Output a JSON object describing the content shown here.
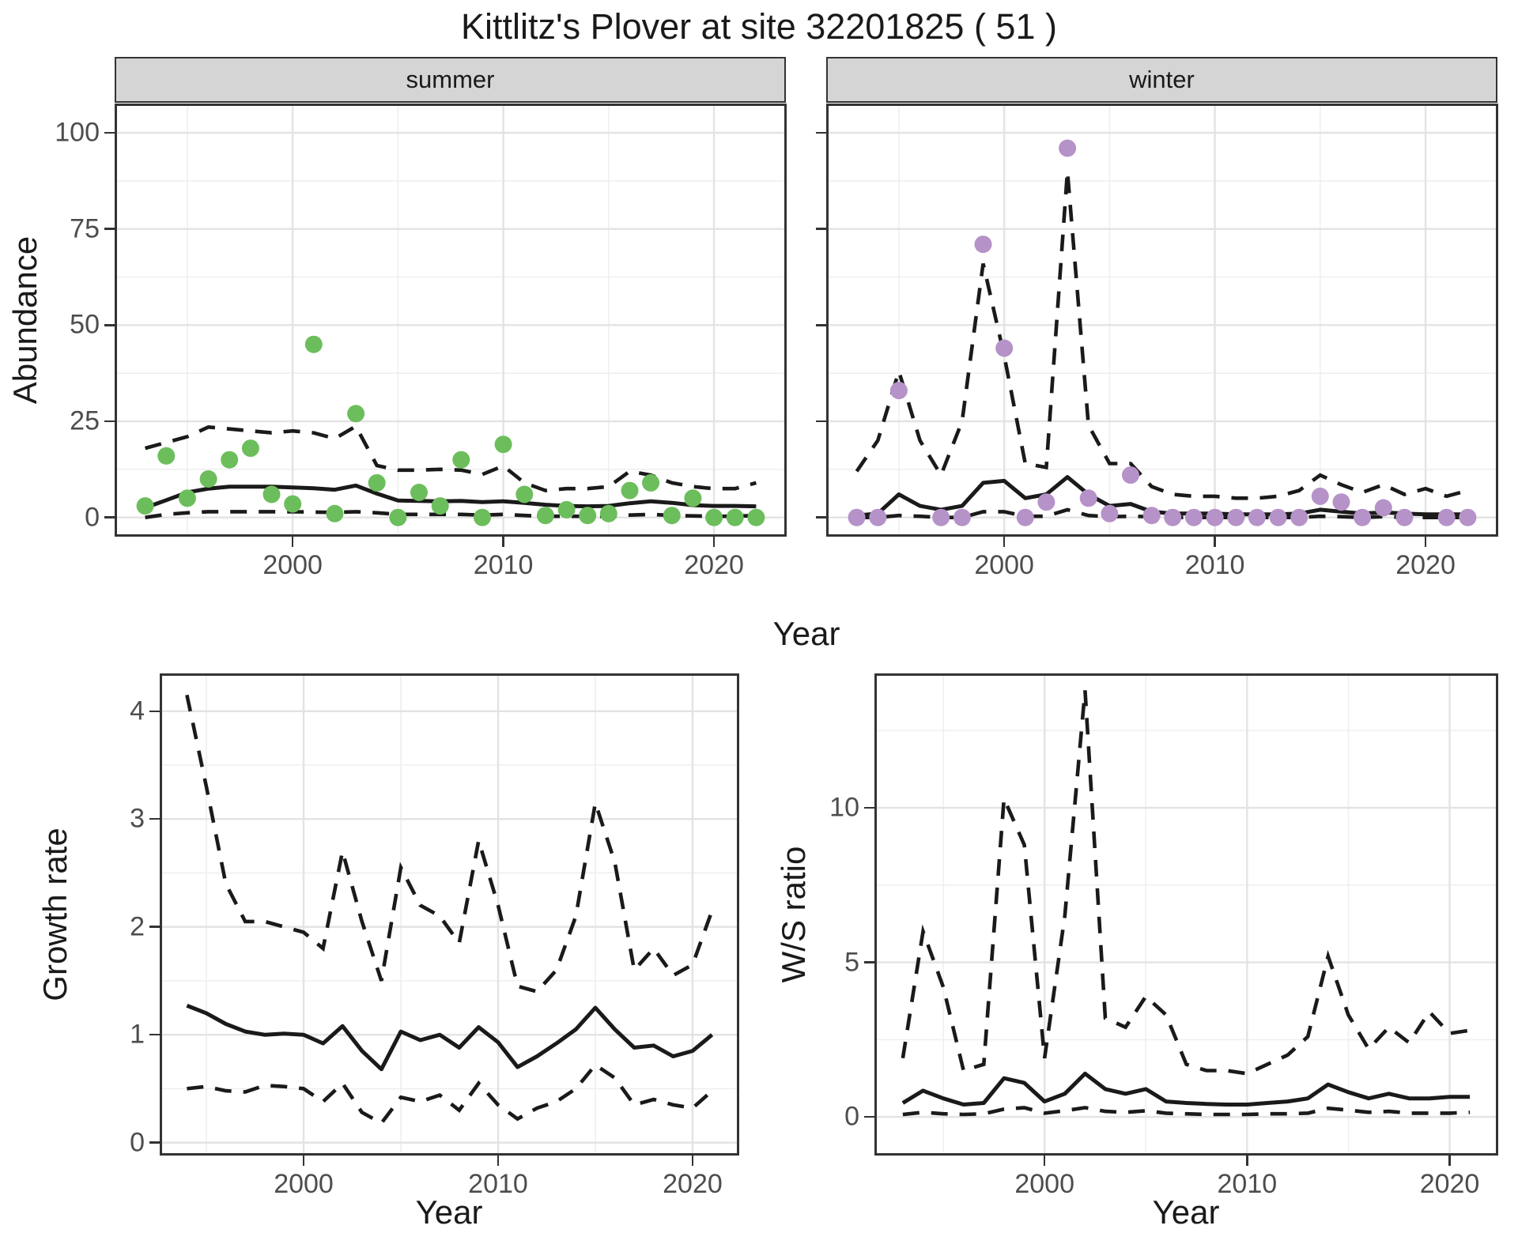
{
  "title": "Kittlitz's Plover at site 32201825 ( 51 )",
  "axis": {
    "abundance_y_title": "Abundance",
    "top_x_title": "Year",
    "growth_y_title": "Growth rate",
    "growth_x_title": "Year",
    "ws_y_title": "W/S ratio",
    "ws_x_title": "Year"
  },
  "facets": {
    "summer": "summer",
    "winter": "winter"
  },
  "colors": {
    "summer_point": "#6CBE5C",
    "winter_point": "#B592C8",
    "line": "#1a1a1a",
    "grid_major": "#e3e3e3",
    "grid_minor": "#efefef",
    "panel_border": "#333333",
    "strip_bg": "#d5d5d5",
    "tick_label": "#4d4d4d"
  },
  "chart_data": [
    {
      "id": "abundance_summer",
      "type": "scatter",
      "facet_label": "summer",
      "ylabel": "Abundance",
      "xlabel": "Year",
      "years": [
        1993,
        1994,
        1995,
        1996,
        1997,
        1998,
        1999,
        2000,
        2001,
        2002,
        2003,
        2004,
        2005,
        2006,
        2007,
        2008,
        2009,
        2010,
        2011,
        2012,
        2013,
        2014,
        2015,
        2016,
        2017,
        2018,
        2019,
        2020,
        2021,
        2022
      ],
      "observed_points": [
        3,
        16,
        5,
        10,
        15,
        18,
        6,
        3.5,
        45,
        1,
        27,
        9,
        0,
        6.5,
        3,
        15,
        0,
        19,
        6,
        0.5,
        2,
        0.5,
        1,
        7,
        9,
        0.5,
        5,
        0,
        0,
        0
      ],
      "median_line": [
        2.5,
        4.5,
        6.5,
        7.5,
        8,
        8,
        8,
        7.8,
        7.6,
        7.2,
        8.3,
        6.2,
        4.4,
        4.3,
        4.2,
        4.3,
        4.0,
        4.2,
        3.8,
        3.3,
        3.0,
        2.9,
        3.0,
        3.7,
        4.2,
        3.8,
        3.2,
        3.0,
        3.0,
        2.9
      ],
      "ci_upper": [
        18,
        19.5,
        21,
        23.5,
        23,
        22.5,
        22,
        22.5,
        22,
        20.5,
        23.7,
        13.5,
        12.3,
        12.3,
        12.5,
        12.3,
        11.2,
        13.4,
        9,
        7,
        7.5,
        7.5,
        8,
        12,
        11,
        9,
        8,
        7.5,
        7.5,
        9
      ],
      "ci_lower": [
        0,
        0.8,
        1.2,
        1.5,
        1.5,
        1.5,
        1.5,
        1.5,
        1.4,
        1.3,
        1.5,
        1.2,
        0.8,
        0.8,
        0.8,
        0.8,
        0.6,
        0.8,
        0.5,
        0.3,
        0.3,
        0.3,
        0.3,
        0.6,
        0.8,
        0.5,
        0.4,
        0.3,
        0.3,
        0.5
      ],
      "point_color": "#6CBE5C",
      "ylim": [
        -5,
        107.6
      ],
      "xlim": [
        1991.55,
        2023.45
      ],
      "yticks": [
        0,
        25,
        50,
        75,
        100
      ],
      "yticks_minor": [
        12.5,
        37.5,
        62.5,
        87.5
      ],
      "xticks": [
        2000,
        2010,
        2020
      ],
      "xticks_minor": [
        1995,
        2005,
        2015
      ],
      "show_y_tick_labels": true
    },
    {
      "id": "abundance_winter",
      "type": "scatter",
      "facet_label": "winter",
      "ylabel": "Abundance",
      "xlabel": "Year",
      "years": [
        1993,
        1994,
        1995,
        1996,
        1997,
        1998,
        1999,
        2000,
        2001,
        2002,
        2003,
        2004,
        2005,
        2006,
        2007,
        2008,
        2009,
        2010,
        2011,
        2012,
        2013,
        2014,
        2015,
        2016,
        2017,
        2018,
        2019,
        2020,
        2021,
        2022
      ],
      "observed_points": [
        0,
        0,
        33,
        null,
        0,
        0,
        71,
        44,
        0,
        4,
        96,
        5,
        1,
        11,
        0.5,
        0,
        0,
        0,
        0,
        0,
        0,
        0,
        5.5,
        4,
        0,
        2.5,
        0,
        null,
        0,
        0
      ],
      "median_line": [
        0.5,
        1,
        6,
        3,
        2,
        3,
        9,
        9.5,
        5,
        6,
        10.5,
        6,
        3,
        3.5,
        1.5,
        1,
        1,
        1,
        0.8,
        0.8,
        0.8,
        1,
        2,
        1.5,
        1,
        1.3,
        1,
        0.8,
        0.8,
        0.8
      ],
      "ci_upper": [
        12,
        20,
        38,
        20,
        11,
        25,
        66,
        42,
        14,
        13,
        90,
        24,
        14,
        14,
        8,
        6,
        5.5,
        5.5,
        5,
        5,
        5.5,
        7,
        11,
        8.5,
        6.5,
        8.5,
        6,
        7.5,
        5.5,
        7
      ],
      "ci_lower": [
        0,
        0,
        0.5,
        0.3,
        0,
        0,
        1.5,
        1.5,
        0.3,
        0.3,
        2,
        0.5,
        0.2,
        0.3,
        0.2,
        0,
        0,
        0,
        0,
        0,
        0,
        0,
        0.3,
        0.2,
        0,
        0.2,
        0,
        0,
        0,
        0
      ],
      "point_color": "#B592C8",
      "ylim": [
        -5,
        107.6
      ],
      "xlim": [
        1991.55,
        2023.45
      ],
      "yticks": [
        0,
        25,
        50,
        75,
        100
      ],
      "yticks_minor": [
        12.5,
        37.5,
        62.5,
        87.5
      ],
      "xticks": [
        2000,
        2010,
        2020
      ],
      "xticks_minor": [
        1995,
        2005,
        2015
      ],
      "show_y_tick_labels": false
    },
    {
      "id": "growth_rate",
      "type": "line",
      "facet_label": "",
      "ylabel": "Growth rate",
      "xlabel": "Year",
      "years": [
        1994,
        1995,
        1996,
        1997,
        1998,
        1999,
        2000,
        2001,
        2002,
        2003,
        2004,
        2005,
        2006,
        2007,
        2008,
        2009,
        2010,
        2011,
        2012,
        2013,
        2014,
        2015,
        2016,
        2017,
        2018,
        2019,
        2020,
        2021
      ],
      "observed_points": null,
      "median_line": [
        1.27,
        1.2,
        1.1,
        1.03,
        1.0,
        1.01,
        1.0,
        0.92,
        1.08,
        0.85,
        0.68,
        1.03,
        0.95,
        1.0,
        0.88,
        1.07,
        0.93,
        0.7,
        0.8,
        0.92,
        1.05,
        1.25,
        1.05,
        0.88,
        0.9,
        0.8,
        0.85,
        1.0
      ],
      "ci_upper": [
        4.15,
        3.3,
        2.4,
        2.05,
        2.05,
        2.0,
        1.95,
        1.8,
        2.7,
        2.05,
        1.5,
        2.55,
        2.2,
        2.1,
        1.85,
        2.8,
        2.2,
        1.45,
        1.4,
        1.6,
        2.1,
        3.15,
        2.6,
        1.6,
        1.8,
        1.55,
        1.65,
        2.15
      ],
      "ci_lower": [
        0.5,
        0.52,
        0.48,
        0.47,
        0.53,
        0.52,
        0.5,
        0.38,
        0.55,
        0.28,
        0.18,
        0.42,
        0.38,
        0.44,
        0.3,
        0.55,
        0.35,
        0.22,
        0.32,
        0.38,
        0.5,
        0.72,
        0.6,
        0.35,
        0.4,
        0.35,
        0.32,
        0.48
      ],
      "point_color": null,
      "ylim": [
        -0.12,
        4.35
      ],
      "xlim": [
        1992.6,
        2022.4
      ],
      "yticks": [
        0,
        1,
        2,
        3,
        4
      ],
      "yticks_minor": [
        0.5,
        1.5,
        2.5,
        3.5
      ],
      "xticks": [
        2000,
        2010,
        2020
      ],
      "xticks_minor": [
        1995,
        2005,
        2015
      ],
      "show_y_tick_labels": true
    },
    {
      "id": "ws_ratio",
      "type": "line",
      "facet_label": "",
      "ylabel": "W/S ratio",
      "xlabel": "Year",
      "years": [
        1993,
        1994,
        1995,
        1996,
        1997,
        1998,
        1999,
        2000,
        2001,
        2002,
        2003,
        2004,
        2005,
        2006,
        2007,
        2008,
        2009,
        2010,
        2011,
        2012,
        2013,
        2014,
        2015,
        2016,
        2017,
        2018,
        2019,
        2020,
        2021
      ],
      "observed_points": null,
      "median_line": [
        0.45,
        0.85,
        0.6,
        0.4,
        0.45,
        1.25,
        1.1,
        0.5,
        0.75,
        1.4,
        0.9,
        0.75,
        0.9,
        0.5,
        0.45,
        0.42,
        0.4,
        0.4,
        0.45,
        0.5,
        0.6,
        1.05,
        0.8,
        0.6,
        0.75,
        0.6,
        0.6,
        0.65,
        0.65
      ],
      "ci_upper": [
        1.9,
        6.0,
        4.2,
        1.5,
        1.7,
        10.3,
        8.8,
        1.9,
        6.5,
        13.8,
        3.2,
        2.9,
        3.9,
        3.3,
        1.7,
        1.5,
        1.5,
        1.4,
        1.7,
        2.0,
        2.6,
        5.2,
        3.3,
        2.2,
        2.9,
        2.4,
        3.4,
        2.7,
        2.8
      ],
      "ci_lower": [
        0.08,
        0.15,
        0.1,
        0.08,
        0.1,
        0.25,
        0.3,
        0.12,
        0.2,
        0.3,
        0.18,
        0.15,
        0.2,
        0.12,
        0.1,
        0.08,
        0.08,
        0.08,
        0.1,
        0.1,
        0.12,
        0.28,
        0.22,
        0.15,
        0.18,
        0.12,
        0.12,
        0.12,
        0.15
      ],
      "point_color": null,
      "ylim": [
        -1.25,
        14.35
      ],
      "xlim": [
        1991.6,
        2022.4
      ],
      "yticks": [
        0,
        5,
        10
      ],
      "yticks_minor": [
        2.5,
        7.5,
        12.5
      ],
      "xticks": [
        2000,
        2010,
        2020
      ],
      "xticks_minor": [
        1995,
        2005,
        2015
      ],
      "show_y_tick_labels": true
    }
  ]
}
